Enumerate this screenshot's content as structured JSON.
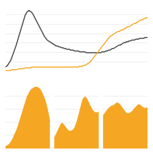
{
  "chart_data": [
    {
      "type": "line",
      "series": [
        {
          "color": "#444444",
          "values": [
            5,
            6,
            8,
            10,
            13,
            17,
            21,
            25,
            30,
            35,
            40,
            46,
            52,
            57,
            62,
            66,
            69,
            71,
            72,
            71,
            70,
            68,
            65,
            62,
            58,
            55,
            52,
            49,
            46,
            43,
            41,
            39,
            37,
            36,
            35,
            34,
            33,
            32,
            31,
            30,
            30,
            29,
            29,
            28,
            28,
            27,
            27,
            26,
            26,
            26,
            25,
            25,
            25,
            24,
            24,
            24,
            24,
            23,
            23,
            23,
            23,
            23,
            22,
            22,
            22,
            22,
            22,
            22,
            22,
            22,
            22,
            22,
            22,
            22,
            23,
            23,
            23,
            24,
            24,
            25,
            25,
            26,
            27,
            27,
            28,
            29,
            30,
            31,
            31,
            32,
            33,
            34,
            34,
            35,
            35,
            36,
            36,
            37,
            37,
            37,
            38,
            38,
            38,
            39,
            39,
            39,
            39,
            40,
            40,
            40
          ]
        },
        {
          "color": "#f5a623",
          "values": [
            1,
            1,
            1,
            1,
            1,
            2,
            2,
            2,
            2,
            2,
            3,
            3,
            3,
            3,
            3,
            4,
            4,
            4,
            4,
            4,
            5,
            5,
            5,
            5,
            5,
            5,
            5,
            5,
            5,
            5,
            5,
            5,
            5,
            5,
            5,
            5,
            5,
            5,
            5,
            5,
            5,
            5,
            5,
            5,
            5,
            5,
            5,
            5,
            5,
            5,
            5,
            5,
            5,
            5,
            5,
            5,
            5,
            6,
            6,
            6,
            7,
            7,
            8,
            9,
            10,
            11,
            13,
            15,
            17,
            19,
            21,
            23,
            25,
            27,
            29,
            31,
            33,
            35,
            37,
            39,
            41,
            42,
            43,
            44,
            45,
            46,
            47,
            47,
            48,
            49,
            49,
            50,
            51,
            52,
            53,
            53,
            54,
            55,
            56,
            57,
            57,
            58,
            59,
            60,
            61,
            61,
            62,
            63,
            63,
            64
          ]
        }
      ],
      "ylim": [
        0,
        78
      ],
      "yticks": [
        0,
        11.142857142857142,
        22.285714285714285,
        33.42857142857143,
        44.57142857142857,
        55.714285714285715,
        66.85714285714286,
        78
      ],
      "grid": true,
      "tick_labels": false
    },
    {
      "type": "area",
      "color": "#f5a623",
      "values": [
        2,
        3,
        4,
        5,
        7,
        9,
        12,
        15,
        18,
        22,
        26,
        31,
        36,
        41,
        46,
        51,
        55,
        59,
        62,
        65,
        67,
        68,
        69,
        70,
        70,
        70,
        69,
        68,
        66,
        63,
        60,
        56,
        51,
        45,
        38,
        30
      ],
      "ylim": [
        0,
        75
      ],
      "yticks": [
        0,
        15,
        30,
        45,
        60,
        75
      ],
      "grid": true,
      "tick_labels": false
    },
    {
      "type": "area",
      "color": "#f5a623",
      "values": [
        12,
        14,
        17,
        20,
        23,
        26,
        28,
        29,
        28,
        26,
        24,
        22,
        21,
        20,
        20,
        20,
        21,
        22,
        24,
        27,
        31,
        36,
        41,
        47,
        52,
        56,
        58,
        59,
        58,
        56,
        53,
        50,
        47,
        45,
        43,
        42,
        41,
        41,
        41,
        42
      ],
      "ylim": [
        0,
        75
      ],
      "yticks": [
        0,
        15,
        30,
        45,
        60,
        75
      ],
      "grid": true,
      "tick_labels": false
    },
    {
      "type": "area",
      "color": "#f5a623",
      "values": [
        38,
        39,
        41,
        43,
        45,
        46,
        47,
        48,
        49,
        49,
        50,
        51,
        52,
        52,
        51,
        50,
        48,
        46,
        44,
        42,
        41,
        40,
        40,
        40,
        41,
        42,
        43,
        45,
        46,
        48,
        49,
        50,
        50,
        49,
        48,
        47,
        46,
        46,
        46,
        47
      ],
      "ylim": [
        0,
        75
      ],
      "yticks": [
        0,
        15,
        30,
        45,
        60,
        75
      ],
      "grid": true,
      "tick_labels": false
    }
  ]
}
